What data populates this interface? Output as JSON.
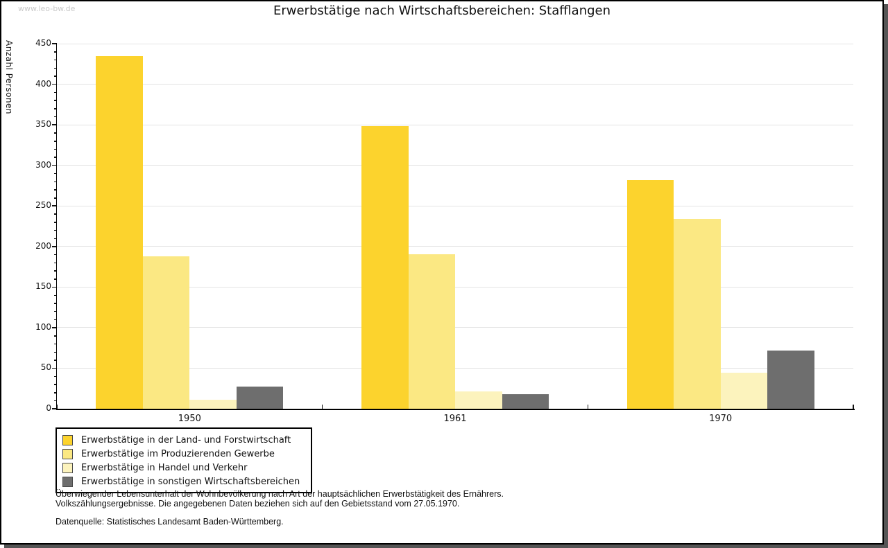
{
  "watermark": "www.leo-bw.de",
  "title": "Erwerbstätige nach Wirtschaftsbereichen: Stafflangen",
  "chart_data": {
    "type": "bar",
    "title": "Erwerbstätige nach Wirtschaftsbereichen: Stafflangen",
    "xlabel": "",
    "ylabel": "Anzahl Personen",
    "categories": [
      "1950",
      "1961",
      "1970"
    ],
    "series": [
      {
        "name": "Erwerbstätige in der Land- und Forstwirtschaft",
        "color": "#fcd32d",
        "values": [
          435,
          348,
          282
        ]
      },
      {
        "name": "Erwerbstätige im Produzierenden Gewerbe",
        "color": "#fbe883",
        "values": [
          188,
          190,
          234
        ]
      },
      {
        "name": "Erwerbstätige in Handel und Verkehr",
        "color": "#fcf3bd",
        "values": [
          11,
          21,
          44
        ]
      },
      {
        "name": "Erwerbstätige in sonstigen Wirtschaftsbereichen",
        "color": "#6e6e6e",
        "values": [
          27,
          18,
          72
        ]
      }
    ],
    "ylim": [
      0,
      450
    ],
    "yticks": [
      0,
      50,
      100,
      150,
      200,
      250,
      300,
      350,
      400,
      450
    ],
    "minor_tick_step": 10,
    "grid": true,
    "legend_position": "bottom-left",
    "colors": {
      "axis": "#000000",
      "gridline": "#e3e3e3",
      "frame_shadow": "#555555",
      "watermark": "#c9c9c9"
    }
  },
  "footer": {
    "line1": "Überwiegender Lebensunterhalt der Wohnbevölkerung nach Art der hauptsächlichen Erwerbstätigkeit des Ernährers.",
    "line2": "Volkszählungsergebnisse. Die angegebenen Daten beziehen sich auf den Gebietsstand vom 27.05.1970.",
    "source": "Datenquelle: Statistisches Landesamt Baden-Württemberg."
  }
}
